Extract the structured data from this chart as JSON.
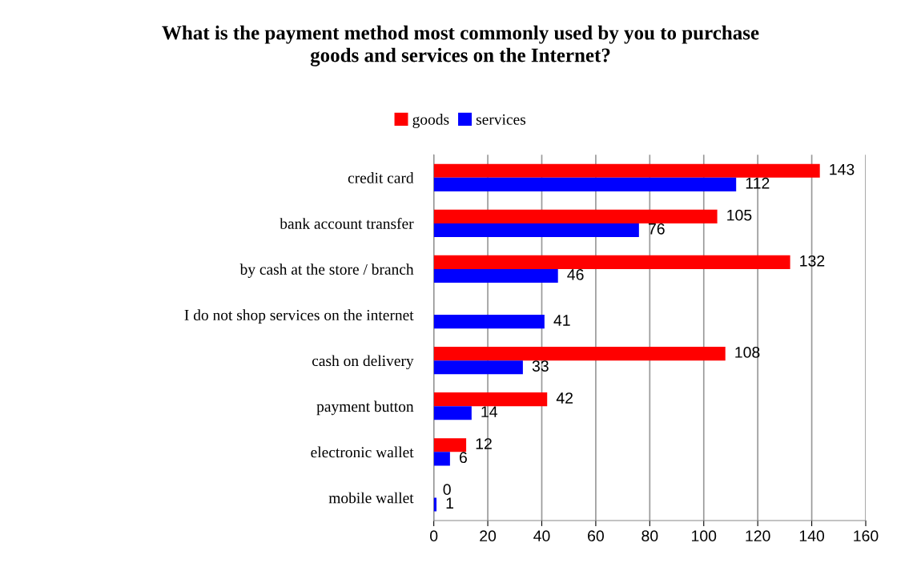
{
  "chart_data": {
    "type": "bar",
    "orientation": "horizontal",
    "title": "What is the payment method most commonly used by you to purchase\ngoods and services on the Internet?",
    "categories": [
      "credit card",
      "bank account transfer",
      "by cash at the store / branch",
      "I do not shop services on the internet",
      "cash on delivery",
      "payment button",
      "electronic wallet",
      "mobile wallet"
    ],
    "series": [
      {
        "name": "goods",
        "color": "#ff0000",
        "values": [
          143,
          105,
          132,
          null,
          108,
          42,
          12,
          0
        ]
      },
      {
        "name": "services",
        "color": "#0000ff",
        "values": [
          112,
          76,
          46,
          41,
          33,
          14,
          6,
          1
        ]
      }
    ],
    "xlim": [
      0,
      160
    ],
    "xticks": [
      0,
      20,
      40,
      60,
      80,
      100,
      120,
      140,
      160
    ],
    "grid": "x",
    "legend": "top",
    "data_labels": true
  }
}
